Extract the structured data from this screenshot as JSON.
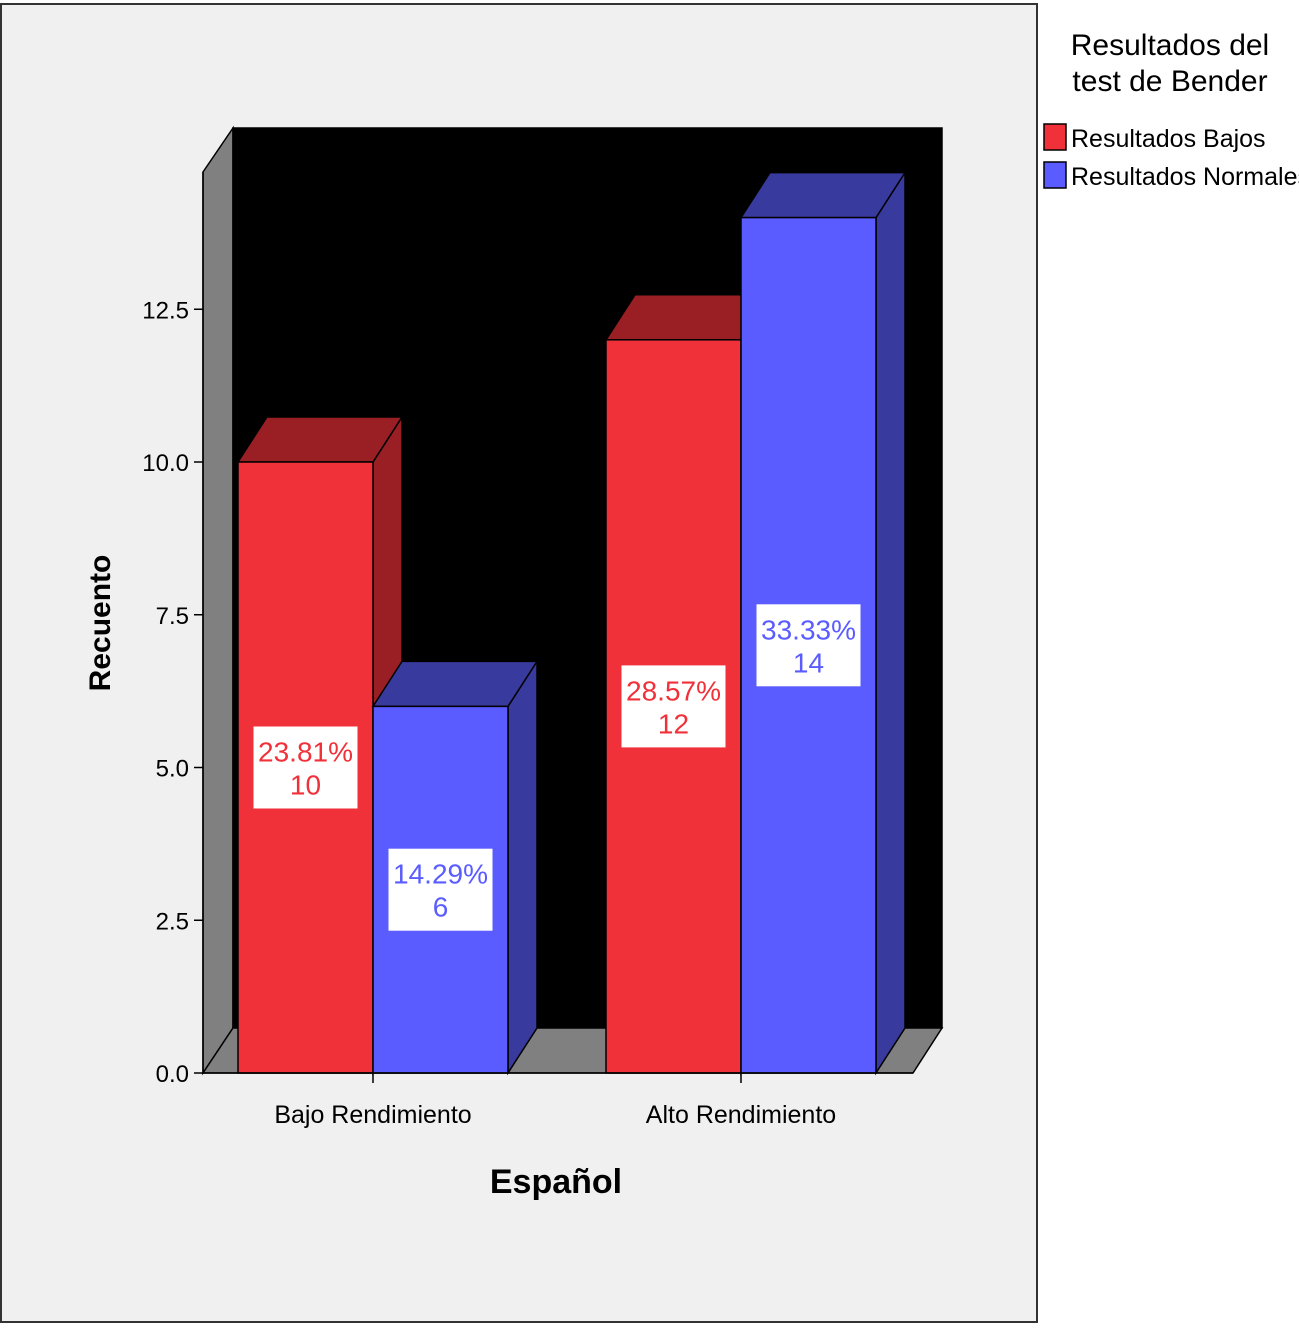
{
  "chart_data": {
    "type": "bar",
    "style": "3d-clustered",
    "xlabel": "Español",
    "ylabel": "Recuento",
    "categories": [
      "Bajo Rendimiento",
      "Alto Rendimiento"
    ],
    "ylim": [
      0,
      15
    ],
    "yticks": [
      "0.0",
      "2.5",
      "5.0",
      "7.5",
      "10.0",
      "12.5"
    ],
    "ytick_values": [
      0,
      2.5,
      5,
      7.5,
      10,
      12.5
    ],
    "grid": false,
    "legend": {
      "title_lines": [
        "Resultados del",
        "test de Bender"
      ],
      "placement": "top-right"
    },
    "series": [
      {
        "name": "Resultados Bajos",
        "values": [
          10,
          12
        ],
        "labels": [
          "23.81%",
          "28.57%"
        ],
        "counts": [
          "10",
          "12"
        ],
        "color": "#f0313a",
        "side_color": "#9a1f24"
      },
      {
        "name": "Resultados Normales",
        "values": [
          6,
          14
        ],
        "labels": [
          "14.29%",
          "33.33%"
        ],
        "counts": [
          "6",
          "14"
        ],
        "color": "#5a5cff",
        "side_color": "#383a9e"
      }
    ],
    "colors": {
      "plot_background": "#000000",
      "chart_background": "#f0f0f0",
      "floor": "#808080"
    }
  }
}
